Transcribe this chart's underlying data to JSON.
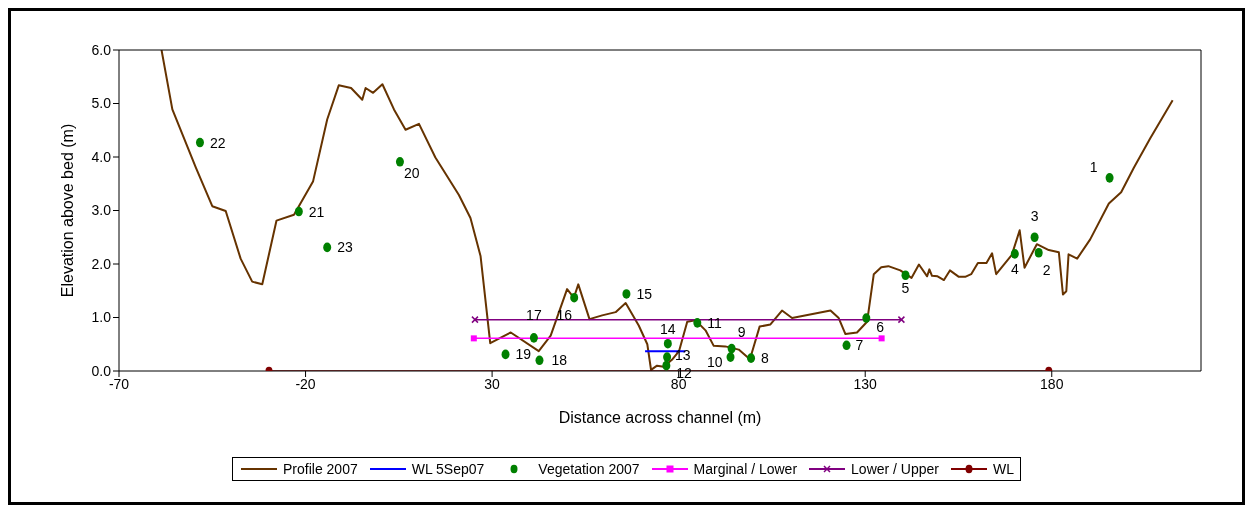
{
  "chart_data": {
    "type": "line",
    "xlabel": "Distance across channel (m)",
    "ylabel": "Elevation above bed (m)",
    "xlim": [
      -70,
      220
    ],
    "xticks": [
      -70,
      -20,
      30,
      80,
      130,
      180
    ],
    "ylim": [
      0,
      6
    ],
    "yticks": [
      {
        "value": 0,
        "label": "0.0"
      },
      {
        "value": 1,
        "label": "1.0"
      },
      {
        "value": 2,
        "label": "2.0"
      },
      {
        "value": 3,
        "label": "3.0"
      },
      {
        "value": 4,
        "label": "4.0"
      },
      {
        "value": 5,
        "label": "5.0"
      },
      {
        "value": 6,
        "label": "6.0"
      }
    ],
    "grid": false,
    "legend": "bottom",
    "series": [
      {
        "name": "Profile 2007",
        "color": "#663300",
        "marker": "none",
        "x": [
          -58.6,
          -55.7,
          -49.4,
          -45.0,
          -41.4,
          -37.4,
          -34.3,
          -31.6,
          -27.8,
          -23.1,
          -18.0,
          -14.2,
          -11.1,
          -7.8,
          -4.8,
          -3.9,
          -1.9,
          0.6,
          3.7,
          6.8,
          10.4,
          14.8,
          21.1,
          24.2,
          26.9,
          29.5,
          35.0,
          42.5,
          45.7,
          50.1,
          51.9,
          53.1,
          56.1,
          59.5,
          63.1,
          65.8,
          69.3,
          71.6,
          72.6,
          74.2,
          76.0,
          78.2,
          80.1,
          82.3,
          84.5,
          87.2,
          89.4,
          92.5,
          96.1,
          99.1,
          101.7,
          104.6,
          107.7,
          110.4,
          120.7,
          122.9,
          124.7,
          127.8,
          130.5,
          132.3,
          134.3,
          136.2,
          139.4,
          142.4,
          144.4,
          146.6,
          147.2,
          147.9,
          149.4,
          151.1,
          152.7,
          155.1,
          156.8,
          158.4,
          160.2,
          162.5,
          164.0,
          165.1,
          169.3,
          171.4,
          172.7,
          176.0,
          179.2,
          181.9,
          183.0,
          183.9,
          184.5,
          186.8,
          190.3,
          195.3,
          198.6,
          202.0,
          206.4,
          212.4
        ],
        "values": [
          6.0,
          4.89,
          3.8,
          3.08,
          2.99,
          2.1,
          1.67,
          1.62,
          2.81,
          2.92,
          3.54,
          4.7,
          5.34,
          5.29,
          5.07,
          5.29,
          5.2,
          5.36,
          4.89,
          4.51,
          4.62,
          3.99,
          3.29,
          2.86,
          2.15,
          0.52,
          0.72,
          0.37,
          0.66,
          1.53,
          1.37,
          1.62,
          0.97,
          1.04,
          1.1,
          1.27,
          0.85,
          0.5,
          0.02,
          0.1,
          0.08,
          0.21,
          0.37,
          0.92,
          0.95,
          0.76,
          0.47,
          0.46,
          0.4,
          0.22,
          0.83,
          0.87,
          1.13,
          0.99,
          1.13,
          0.99,
          0.69,
          0.72,
          0.92,
          1.81,
          1.94,
          1.96,
          1.88,
          1.74,
          1.99,
          1.77,
          1.9,
          1.78,
          1.77,
          1.7,
          1.88,
          1.76,
          1.76,
          1.81,
          2.02,
          2.02,
          2.2,
          1.81,
          2.17,
          2.63,
          1.93,
          2.37,
          2.26,
          2.22,
          1.43,
          1.49,
          2.18,
          2.1,
          2.46,
          3.13,
          3.34,
          3.8,
          4.35,
          5.06
        ]
      },
      {
        "name": "WL 5Sep07",
        "color": "#0000ff",
        "marker": "none",
        "x": [
          71.0,
          81.8
        ],
        "values": [
          0.37,
          0.37
        ]
      },
      {
        "name": "Vegetation 2007",
        "type": "scatter",
        "color": "#008000",
        "marker": "circle",
        "x": [
          195.5,
          176.5,
          175.4,
          170.1,
          140.8,
          130.3,
          125.0,
          99.4,
          94.2,
          93.9,
          85.0,
          76.7,
          76.9,
          77.1,
          66.0,
          52.0,
          41.2,
          42.7,
          33.6,
          5.3,
          -21.8,
          -48.3,
          -14.2
        ],
        "values": [
          3.61,
          2.21,
          2.5,
          2.19,
          1.79,
          0.99,
          0.48,
          0.24,
          0.42,
          0.26,
          0.9,
          0.1,
          0.26,
          0.51,
          1.44,
          1.37,
          0.62,
          0.2,
          0.31,
          3.91,
          2.98,
          4.27,
          2.31
        ]
      },
      {
        "name": "Marginal / Lower",
        "color": "#ff00ff",
        "marker": "square",
        "x": [
          25.1,
          134.4
        ],
        "values": [
          0.61,
          0.61
        ]
      },
      {
        "name": "Lower / Upper",
        "color": "#800080",
        "marker": "cross",
        "x": [
          25.4,
          139.7
        ],
        "values": [
          0.96,
          0.96
        ]
      },
      {
        "name": "WL",
        "color": "#800000",
        "marker": "circle",
        "x": [
          -29.8,
          179.2
        ],
        "values": [
          0,
          0
        ]
      }
    ],
    "annotations": [
      {
        "text": "1",
        "x": 195.5,
        "y": 3.61
      },
      {
        "text": "2",
        "x": 176.5,
        "y": 2.21
      },
      {
        "text": "3",
        "x": 175.4,
        "y": 2.5
      },
      {
        "text": "4",
        "x": 170.1,
        "y": 2.19
      },
      {
        "text": "5",
        "x": 140.8,
        "y": 1.79
      },
      {
        "text": "6",
        "x": 130.3,
        "y": 0.99
      },
      {
        "text": "7",
        "x": 125.0,
        "y": 0.48
      },
      {
        "text": "8",
        "x": 99.4,
        "y": 0.24
      },
      {
        "text": "9",
        "x": 94.2,
        "y": 0.42
      },
      {
        "text": "10",
        "x": 93.9,
        "y": 0.26
      },
      {
        "text": "11",
        "x": 85.0,
        "y": 0.9
      },
      {
        "text": "12",
        "x": 76.7,
        "y": 0.1
      },
      {
        "text": "13",
        "x": 76.9,
        "y": 0.26
      },
      {
        "text": "14",
        "x": 77.1,
        "y": 0.51
      },
      {
        "text": "15",
        "x": 66.0,
        "y": 1.44
      },
      {
        "text": "16",
        "x": 52.0,
        "y": 1.37
      },
      {
        "text": "17",
        "x": 41.2,
        "y": 0.62
      },
      {
        "text": "18",
        "x": 42.7,
        "y": 0.2
      },
      {
        "text": "19",
        "x": 33.6,
        "y": 0.31
      },
      {
        "text": "20",
        "x": 5.3,
        "y": 3.91
      },
      {
        "text": "21",
        "x": -21.8,
        "y": 2.98
      },
      {
        "text": "22",
        "x": -48.3,
        "y": 4.27
      },
      {
        "text": "23",
        "x": -14.2,
        "y": 2.31
      }
    ]
  }
}
